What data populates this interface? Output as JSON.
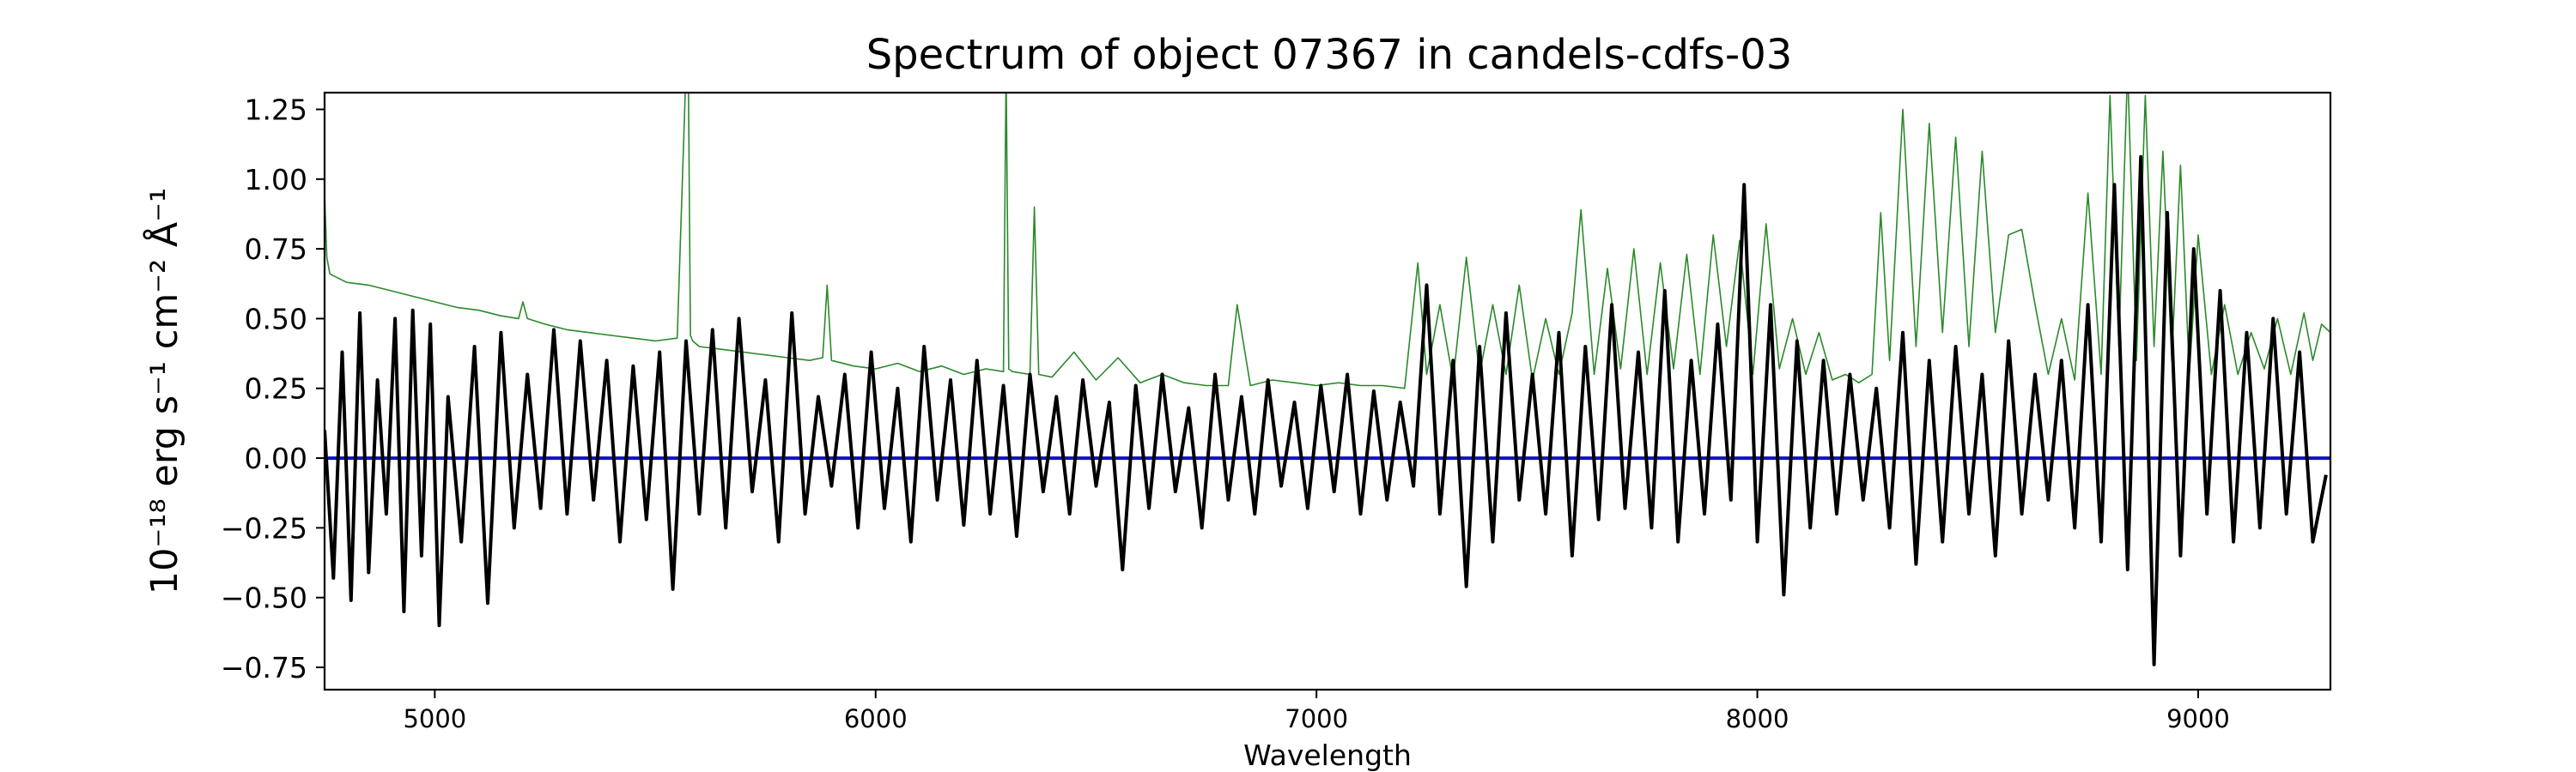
{
  "chart_data": {
    "type": "line",
    "title": "Spectrum of object 07367 in candels-cdfs-03",
    "xlabel": "Wavelength",
    "ylabel": "10⁻¹⁸ erg s⁻¹ cm⁻² Å⁻¹",
    "xlim": [
      4750,
      9300
    ],
    "ylim": [
      -0.83,
      1.31
    ],
    "x_ticks": [
      5000,
      6000,
      7000,
      8000,
      9000
    ],
    "y_ticks": [
      1.25,
      1.0,
      0.75,
      0.5,
      0.25,
      0.0,
      -0.25,
      -0.5,
      -0.75
    ],
    "x_tick_labels": [
      "5000",
      "6000",
      "7000",
      "8000",
      "9000"
    ],
    "y_tick_labels": [
      "1.25",
      "1.00",
      "0.75",
      "0.50",
      "0.25",
      "0.00",
      "−0.25",
      "−0.50",
      "−0.75"
    ],
    "grid": false,
    "legend": "none",
    "series": [
      {
        "role": "flux",
        "color": "#000000",
        "x": [
          4750,
          4770,
          4790,
          4810,
          4830,
          4850,
          4870,
          4890,
          4910,
          4930,
          4950,
          4970,
          4990,
          5010,
          5030,
          5060,
          5090,
          5120,
          5150,
          5180,
          5210,
          5240,
          5270,
          5300,
          5330,
          5360,
          5390,
          5420,
          5450,
          5480,
          5510,
          5540,
          5570,
          5600,
          5630,
          5660,
          5690,
          5720,
          5750,
          5780,
          5810,
          5840,
          5870,
          5900,
          5930,
          5960,
          5990,
          6020,
          6050,
          6080,
          6110,
          6140,
          6170,
          6200,
          6230,
          6260,
          6290,
          6320,
          6350,
          6380,
          6410,
          6440,
          6470,
          6500,
          6530,
          6560,
          6590,
          6620,
          6650,
          6680,
          6710,
          6740,
          6770,
          6800,
          6830,
          6860,
          6890,
          6920,
          6950,
          6980,
          7010,
          7040,
          7070,
          7100,
          7130,
          7160,
          7190,
          7220,
          7250,
          7280,
          7310,
          7340,
          7370,
          7400,
          7430,
          7460,
          7490,
          7520,
          7550,
          7580,
          7610,
          7640,
          7670,
          7700,
          7730,
          7760,
          7790,
          7820,
          7850,
          7880,
          7910,
          7940,
          7970,
          8000,
          8030,
          8060,
          8090,
          8120,
          8150,
          8180,
          8210,
          8240,
          8270,
          8300,
          8330,
          8360,
          8390,
          8420,
          8450,
          8480,
          8510,
          8540,
          8570,
          8600,
          8630,
          8660,
          8690,
          8720,
          8750,
          8780,
          8810,
          8840,
          8870,
          8900,
          8930,
          8960,
          8990,
          9020,
          9050,
          9080,
          9110,
          9140,
          9170,
          9200,
          9230,
          9260,
          9290
        ],
        "values": [
          0.1,
          -0.43,
          0.38,
          -0.51,
          0.52,
          -0.41,
          0.28,
          -0.2,
          0.5,
          -0.55,
          0.53,
          -0.35,
          0.48,
          -0.6,
          0.22,
          -0.3,
          0.4,
          -0.52,
          0.45,
          -0.25,
          0.3,
          -0.18,
          0.46,
          -0.2,
          0.42,
          -0.15,
          0.35,
          -0.3,
          0.33,
          -0.22,
          0.38,
          -0.47,
          0.42,
          -0.2,
          0.46,
          -0.25,
          0.5,
          -0.12,
          0.28,
          -0.3,
          0.52,
          -0.2,
          0.22,
          -0.1,
          0.3,
          -0.25,
          0.38,
          -0.18,
          0.25,
          -0.3,
          0.4,
          -0.15,
          0.28,
          -0.24,
          0.35,
          -0.2,
          0.26,
          -0.28,
          0.3,
          -0.12,
          0.22,
          -0.2,
          0.28,
          -0.1,
          0.2,
          -0.4,
          0.26,
          -0.18,
          0.3,
          -0.12,
          0.18,
          -0.25,
          0.3,
          -0.15,
          0.22,
          -0.2,
          0.28,
          -0.1,
          0.2,
          -0.18,
          0.26,
          -0.12,
          0.3,
          -0.2,
          0.24,
          -0.15,
          0.2,
          -0.1,
          0.62,
          -0.2,
          0.35,
          -0.46,
          0.4,
          -0.3,
          0.52,
          -0.15,
          0.3,
          -0.2,
          0.45,
          -0.35,
          0.4,
          -0.22,
          0.55,
          -0.18,
          0.38,
          -0.25,
          0.6,
          -0.3,
          0.35,
          -0.2,
          0.48,
          -0.15,
          0.98,
          -0.3,
          0.55,
          -0.49,
          0.42,
          -0.25,
          0.35,
          -0.2,
          0.3,
          -0.15,
          0.25,
          -0.25,
          0.45,
          -0.38,
          0.35,
          -0.3,
          0.4,
          -0.2,
          0.3,
          -0.35,
          0.42,
          -0.2,
          0.3,
          -0.15,
          0.35,
          -0.25,
          0.55,
          -0.3,
          0.98,
          -0.4,
          1.08,
          -0.74,
          0.88,
          -0.35,
          0.75,
          -0.2,
          0.6,
          -0.3,
          0.45,
          -0.25,
          0.5,
          -0.2,
          0.38,
          -0.3,
          -0.06
        ]
      },
      {
        "role": "uncertainty",
        "color": "#2a8a2a",
        "x": [
          4750,
          4755,
          4762,
          4775,
          4800,
          4850,
          4900,
          4950,
          5000,
          5050,
          5100,
          5150,
          5190,
          5200,
          5210,
          5250,
          5300,
          5350,
          5400,
          5450,
          5500,
          5550,
          5570,
          5575,
          5580,
          5585,
          5600,
          5650,
          5700,
          5750,
          5800,
          5850,
          5880,
          5890,
          5900,
          5950,
          6000,
          6050,
          6100,
          6150,
          6200,
          6250,
          6290,
          6296,
          6302,
          6310,
          6350,
          6360,
          6370,
          6400,
          6450,
          6500,
          6550,
          6600,
          6650,
          6700,
          6750,
          6800,
          6820,
          6850,
          6900,
          6950,
          7000,
          7050,
          7100,
          7150,
          7200,
          7230,
          7250,
          7280,
          7310,
          7340,
          7370,
          7400,
          7430,
          7460,
          7490,
          7520,
          7550,
          7580,
          7600,
          7630,
          7660,
          7690,
          7720,
          7750,
          7780,
          7810,
          7840,
          7870,
          7900,
          7930,
          7960,
          7990,
          8020,
          8050,
          8080,
          8110,
          8140,
          8170,
          8200,
          8230,
          8260,
          8280,
          8300,
          8330,
          8360,
          8390,
          8420,
          8450,
          8480,
          8510,
          8540,
          8570,
          8600,
          8630,
          8660,
          8690,
          8720,
          8750,
          8780,
          8800,
          8820,
          8840,
          8860,
          8880,
          8900,
          8920,
          8940,
          8960,
          8980,
          9000,
          9030,
          9060,
          9090,
          9120,
          9150,
          9180,
          9210,
          9240,
          9260,
          9280,
          9300
        ],
        "values": [
          0.95,
          0.72,
          0.66,
          0.65,
          0.63,
          0.62,
          0.6,
          0.58,
          0.56,
          0.54,
          0.53,
          0.51,
          0.5,
          0.56,
          0.5,
          0.48,
          0.46,
          0.45,
          0.44,
          0.43,
          0.42,
          0.43,
          1.4,
          1.4,
          0.44,
          0.42,
          0.4,
          0.39,
          0.38,
          0.37,
          0.36,
          0.35,
          0.36,
          0.62,
          0.35,
          0.33,
          0.32,
          0.34,
          0.31,
          0.33,
          0.3,
          0.32,
          0.31,
          1.4,
          0.32,
          0.31,
          0.3,
          0.9,
          0.3,
          0.29,
          0.38,
          0.28,
          0.36,
          0.27,
          0.3,
          0.27,
          0.26,
          0.26,
          0.55,
          0.26,
          0.28,
          0.27,
          0.26,
          0.27,
          0.26,
          0.26,
          0.25,
          0.7,
          0.3,
          0.55,
          0.28,
          0.72,
          0.3,
          0.55,
          0.3,
          0.62,
          0.28,
          0.5,
          0.3,
          0.52,
          0.89,
          0.3,
          0.68,
          0.32,
          0.75,
          0.3,
          0.7,
          0.32,
          0.73,
          0.3,
          0.8,
          0.4,
          0.78,
          0.3,
          0.84,
          0.32,
          0.5,
          0.3,
          0.45,
          0.28,
          0.3,
          0.27,
          0.3,
          0.88,
          0.35,
          1.25,
          0.4,
          1.2,
          0.45,
          1.15,
          0.4,
          1.1,
          0.45,
          0.8,
          0.82,
          0.55,
          0.3,
          0.5,
          0.28,
          0.95,
          0.3,
          1.3,
          0.4,
          1.4,
          0.35,
          1.3,
          0.4,
          1.1,
          0.35,
          1.05,
          0.3,
          0.8,
          0.3,
          0.55,
          0.3,
          0.45,
          0.32,
          0.5,
          0.3,
          0.52,
          0.35,
          0.48,
          0.45
        ]
      },
      {
        "role": "zero level",
        "color": "#1010c8",
        "x": [
          4750,
          9300
        ],
        "values": [
          0,
          0
        ]
      }
    ]
  }
}
